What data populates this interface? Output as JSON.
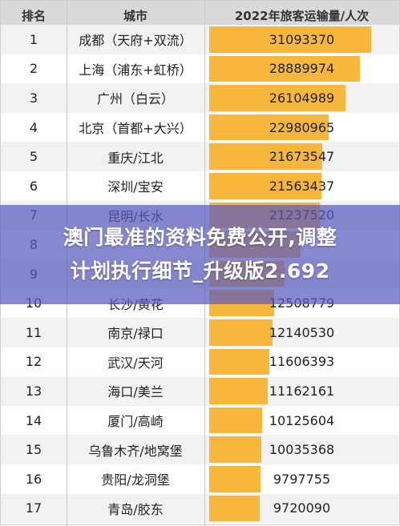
{
  "banner": {
    "line1": "澳门最准的资料免费公开,调整",
    "line2": "计划执行细节_升级版2.692"
  },
  "colors": {
    "bar": "#f6b73c",
    "header_bg": "#d9d9d9",
    "banner_bg": "#5a5abe"
  },
  "chart_data": {
    "type": "table",
    "columns": [
      "排名",
      "城市",
      "2022年旅客运输量/人次"
    ],
    "rows": [
      {
        "rank": "1",
        "city": "成都（天府+双流）",
        "value": "31093370"
      },
      {
        "rank": "2",
        "city": "上海（浦东+虹桥）",
        "value": "28889974"
      },
      {
        "rank": "3",
        "city": "广州（白云）",
        "value": "26104989"
      },
      {
        "rank": "4",
        "city": "北京（首都+大兴）",
        "value": "22980965"
      },
      {
        "rank": "5",
        "city": "重庆/江北",
        "value": "21673547"
      },
      {
        "rank": "6",
        "city": "深圳/宝安",
        "value": "21563437"
      },
      {
        "rank": "7",
        "city": "昆明/长水",
        "value": "21237520"
      },
      {
        "rank": "8",
        "city": "",
        "value": ""
      },
      {
        "rank": "9",
        "city": "",
        "value": ""
      },
      {
        "rank": "10",
        "city": "长沙/黄花",
        "value": "12508779"
      },
      {
        "rank": "11",
        "city": "南京/禄口",
        "value": "12140530"
      },
      {
        "rank": "12",
        "city": "武汉/天河",
        "value": "11606393"
      },
      {
        "rank": "13",
        "city": "海口/美兰",
        "value": "11162161"
      },
      {
        "rank": "14",
        "city": "厦门/高崎",
        "value": "10125604"
      },
      {
        "rank": "15",
        "city": "乌鲁木齐/地窝堡",
        "value": "10035368"
      },
      {
        "rank": "16",
        "city": "贵阳/龙洞堡",
        "value": "9797755"
      },
      {
        "rank": "17",
        "city": "青岛/胶东",
        "value": "9720090"
      }
    ],
    "bar_values": [
      31093370,
      28889974,
      26104989,
      22980965,
      21673547,
      21563437,
      21237520,
      17500000,
      14500000,
      12508779,
      12140530,
      11606393,
      11162161,
      10125604,
      10035368,
      9797755,
      9720090
    ],
    "bar_max": 31093370
  }
}
